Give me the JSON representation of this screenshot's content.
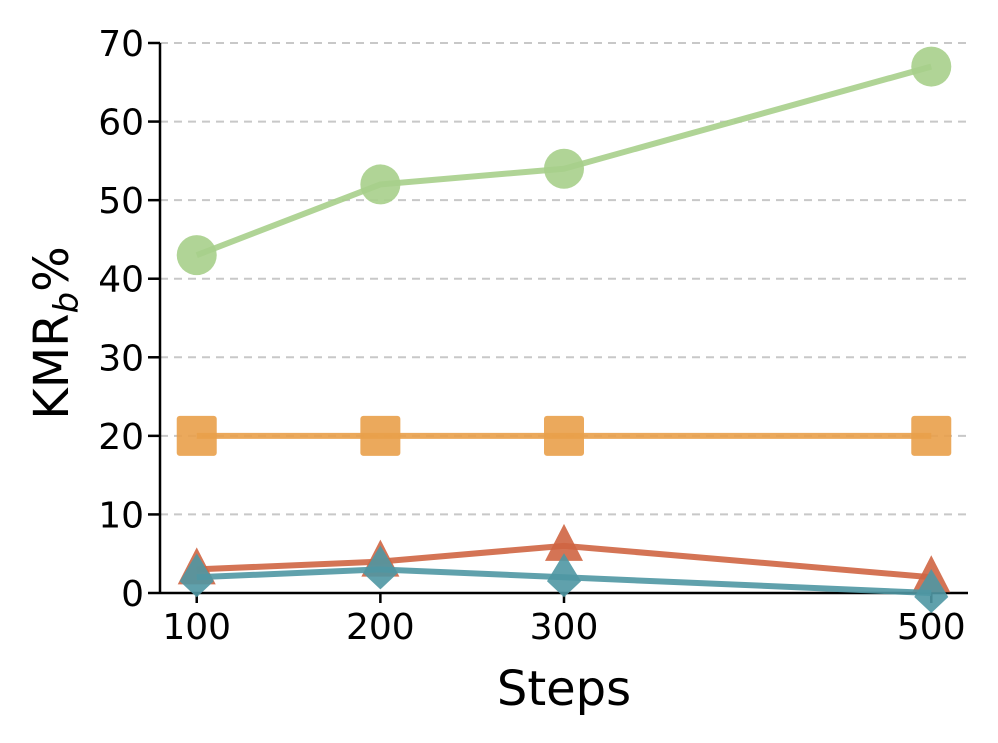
{
  "chart_data": {
    "type": "line",
    "title": "",
    "xlabel": "Steps",
    "ylabel_main": "KMR",
    "ylabel_sub": "b",
    "ylabel_suffix": "%",
    "x": [
      100,
      200,
      300,
      500
    ],
    "xticks": [
      "100",
      "200",
      "300",
      "500"
    ],
    "xlim": [
      80,
      520
    ],
    "yticks": [
      "0",
      "10",
      "20",
      "30",
      "40",
      "50",
      "60",
      "70"
    ],
    "ylim": [
      0,
      70
    ],
    "grid": "horizontal dashed",
    "legend": "none",
    "series": [
      {
        "values": [
          43,
          52,
          54,
          67
        ],
        "color": "#a7cf8b",
        "marker": "circle"
      },
      {
        "values": [
          20,
          20,
          20,
          20
        ],
        "color": "#e9a04a",
        "marker": "square"
      },
      {
        "values": [
          3,
          4,
          6,
          2
        ],
        "color": "#cf6543",
        "marker": "triangle-up"
      },
      {
        "values": [
          2,
          3,
          2,
          0
        ],
        "color": "#4f97a3",
        "marker": "triangle-diamond"
      }
    ]
  }
}
